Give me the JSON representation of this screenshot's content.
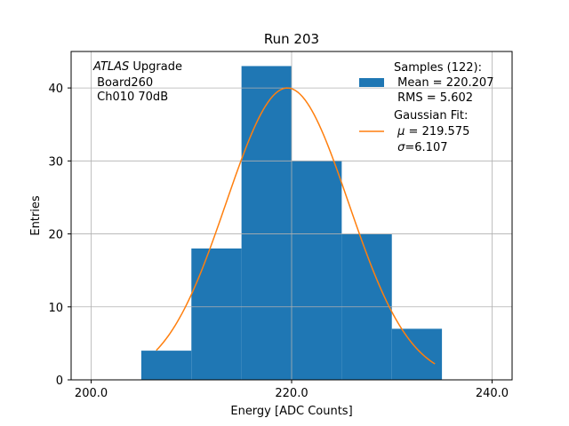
{
  "chart_data": {
    "type": "histogram",
    "title": "Run 203",
    "xlabel": "Energy [ADC Counts]",
    "ylabel": "Entries",
    "xlim": [
      198,
      242
    ],
    "ylim": [
      0,
      45
    ],
    "grid": true,
    "x_ticks": [
      200,
      220,
      240
    ],
    "x_tick_labels": [
      "200.0",
      "220.0",
      "240.0"
    ],
    "y_ticks": [
      0,
      10,
      20,
      30,
      40
    ],
    "y_tick_labels": [
      "0",
      "10",
      "20",
      "30",
      "40"
    ],
    "bins": [
      {
        "x0": 205,
        "x1": 210,
        "count": 4
      },
      {
        "x0": 210,
        "x1": 215,
        "count": 18
      },
      {
        "x0": 215,
        "x1": 220,
        "count": 43
      },
      {
        "x0": 220,
        "x1": 225,
        "count": 30
      },
      {
        "x0": 225,
        "x1": 230,
        "count": 20
      },
      {
        "x0": 230,
        "x1": 235,
        "count": 7
      }
    ],
    "fit": {
      "type": "gaussian",
      "amplitude": 40,
      "mu": 219.575,
      "sigma": 6.107,
      "x_range": [
        206.5,
        234.3
      ]
    },
    "annotation": {
      "line1_italic": "ATLAS",
      "line1_rest": " Upgrade",
      "line2": " Board260",
      "line3": " Ch010 70dB"
    },
    "legend": {
      "position": "top-right",
      "samples": {
        "line1": "Samples (122):",
        "line2": " Mean = 220.207",
        "line3": " RMS = 5.602"
      },
      "fit": {
        "line1": "Gaussian Fit:",
        "line2_mu": "μ",
        "line2_rest": " = 219.575",
        "line3_sigma": "σ",
        "line3_rest": "=6.107"
      }
    },
    "colors": {
      "bars": "#1f77b4",
      "fit_line": "#ff7f0e",
      "grid": "#b0b0b0"
    }
  }
}
